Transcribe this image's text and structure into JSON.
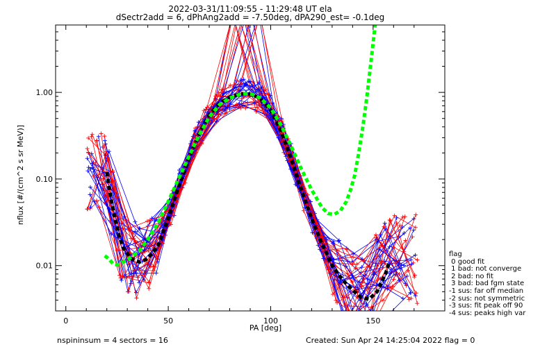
{
  "chart_data": {
    "type": "line",
    "title": "2022-03-31/11:09:55 - 11:29:48 UT ela",
    "subtitle": "dSectr2add = 6, dPhAng2add = -7.50deg, dPA290_est=  -0.1deg",
    "xlabel": "PA [deg]",
    "ylabel": "nflux [#/(cm^2 s sr MeV)]",
    "xlim": [
      -5,
      185
    ],
    "ylim": [
      0.003,
      6.0
    ],
    "yscale": "log",
    "x_ticks": [
      0,
      50,
      100,
      150
    ],
    "y_ticks": [
      {
        "value": 0.01,
        "label": "0.01"
      },
      {
        "value": 0.1,
        "label": "0.10"
      },
      {
        "value": 1.0,
        "label": "1.00"
      }
    ],
    "series_colors": {
      "red": "#ff0000",
      "blue": "#0000ff",
      "black": "#000000",
      "green": "#00ff00"
    },
    "black_fit": {
      "x": [
        20,
        22,
        24,
        26,
        28,
        32,
        36,
        40,
        45,
        50,
        55,
        60,
        65,
        70,
        75,
        80,
        85,
        88,
        91,
        95,
        100,
        105,
        110,
        115,
        120,
        125,
        130,
        133,
        136,
        140,
        144,
        148,
        152,
        156,
        158
      ],
      "y": [
        0.12,
        0.06,
        0.035,
        0.022,
        0.016,
        0.012,
        0.011,
        0.012,
        0.017,
        0.035,
        0.08,
        0.17,
        0.33,
        0.55,
        0.75,
        0.88,
        0.96,
        0.97,
        0.94,
        0.85,
        0.62,
        0.36,
        0.17,
        0.075,
        0.035,
        0.018,
        0.01,
        0.008,
        0.0065,
        0.0052,
        0.0043,
        0.0041,
        0.005,
        0.008,
        0.011
      ]
    },
    "green_fit": {
      "x": [
        19,
        21,
        23,
        25,
        28,
        32,
        36,
        40,
        45,
        50,
        55,
        60,
        65,
        70,
        75,
        80,
        85,
        88,
        91,
        95,
        100,
        105,
        110,
        115,
        120,
        125,
        128,
        131,
        134,
        137,
        139,
        141,
        143,
        145,
        147,
        149,
        151
      ],
      "y": [
        0.013,
        0.012,
        0.0105,
        0.0102,
        0.011,
        0.0125,
        0.015,
        0.02,
        0.031,
        0.055,
        0.1,
        0.18,
        0.32,
        0.52,
        0.72,
        0.86,
        0.95,
        0.97,
        0.95,
        0.86,
        0.66,
        0.42,
        0.24,
        0.13,
        0.075,
        0.047,
        0.04,
        0.039,
        0.043,
        0.055,
        0.075,
        0.11,
        0.2,
        0.4,
        0.9,
        2.3,
        6.0
      ]
    },
    "legend": {
      "position": "bottom-right",
      "entries": [
        "flag",
        " 0 good fit",
        " 1 bad: not converge",
        " 2 bad: no fit",
        " 3 bad: bad fgm state",
        "-1 sus: far off median",
        "-2 sus: not symmetric",
        "-3 sus: fit peak off 90",
        "-4 sus: peaks high var"
      ]
    }
  },
  "footer": {
    "left": "nspininsum =  4   sectors = 16",
    "right": "Created: Sun Apr 24 14:25:04 2022   flag = 0"
  }
}
